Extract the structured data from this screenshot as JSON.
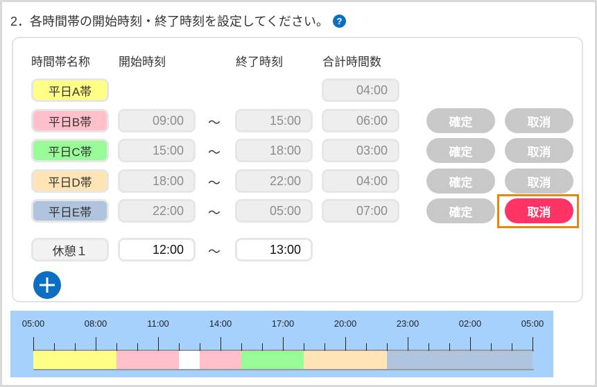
{
  "title": "2．各時間帯の開始時刻・終了時刻を設定してください。",
  "help_icon": "question-circle-icon",
  "headers": {
    "name": "時間帯名称",
    "start": "開始時刻",
    "end": "終了時刻",
    "total": "合計時間数"
  },
  "tilde": "～",
  "rows": [
    {
      "name": "平日A帯",
      "color": "#ffff88",
      "start": null,
      "end": null,
      "total": "04:00"
    },
    {
      "name": "平日B帯",
      "color": "#ffc0cb",
      "start": "09:00",
      "end": "15:00",
      "total": "06:00"
    },
    {
      "name": "平日C帯",
      "color": "#98fb98",
      "start": "15:00",
      "end": "18:00",
      "total": "03:00"
    },
    {
      "name": "平日D帯",
      "color": "#ffe4b5",
      "start": "18:00",
      "end": "22:00",
      "total": "04:00"
    },
    {
      "name": "平日E帯",
      "color": "#b0c4de",
      "start": "22:00",
      "end": "05:00",
      "total": "07:00"
    }
  ],
  "buttons": {
    "confirm": "確定",
    "cancel": "取消"
  },
  "break": {
    "name": "休憩１",
    "start": "12:00",
    "end": "13:00"
  },
  "add_icon": "plus-circle-icon",
  "timeline": {
    "labels": [
      "05:00",
      "08:00",
      "11:00",
      "14:00",
      "17:00",
      "20:00",
      "23:00",
      "02:00",
      "05:00"
    ],
    "segments": [
      {
        "from": "05:00",
        "to": "09:00",
        "color": "#ffff88"
      },
      {
        "from": "09:00",
        "to": "12:00",
        "color": "#ffc0cb"
      },
      {
        "from": "12:00",
        "to": "13:00",
        "color": "#ffffff"
      },
      {
        "from": "13:00",
        "to": "15:00",
        "color": "#ffc0cb"
      },
      {
        "from": "15:00",
        "to": "18:00",
        "color": "#98fb98"
      },
      {
        "from": "18:00",
        "to": "22:00",
        "color": "#ffe4b5"
      },
      {
        "from": "22:00",
        "to": "05:00",
        "color": "#b0c4de"
      }
    ]
  },
  "colors": {
    "accent": "#0a6fc2",
    "cancel_active": "#ff3366",
    "highlight": "#e8870e"
  }
}
